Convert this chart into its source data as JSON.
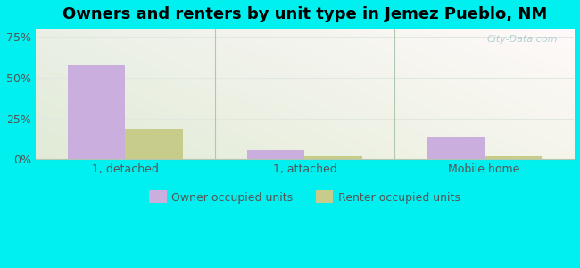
{
  "title": "Owners and renters by unit type in Jemez Pueblo, NM",
  "categories": [
    "1, detached",
    "1, attached",
    "Mobile home"
  ],
  "owner_values": [
    57.5,
    5.5,
    14.0
  ],
  "renter_values": [
    19.0,
    2.0,
    2.0
  ],
  "owner_color": "#c9aede",
  "renter_color": "#c8cc8a",
  "yticks": [
    0,
    25,
    50,
    75
  ],
  "ytick_labels": [
    "0%",
    "25%",
    "50%",
    "75%"
  ],
  "ylim": [
    0,
    80
  ],
  "bar_width": 0.32,
  "bg_color_topleft": "#d8eed8",
  "bg_color_topright": "#f0f8f0",
  "bg_color_bottom": "#d8f0e8",
  "outer_bg": "#00efef",
  "legend_owner": "Owner occupied units",
  "legend_renter": "Renter occupied units",
  "watermark": "City-Data.com",
  "title_fontsize": 13,
  "axis_label_fontsize": 9,
  "legend_fontsize": 9,
  "tick_color": "#555555",
  "grid_color": "#e0e8e0",
  "separator_color": "#b0c8b0"
}
